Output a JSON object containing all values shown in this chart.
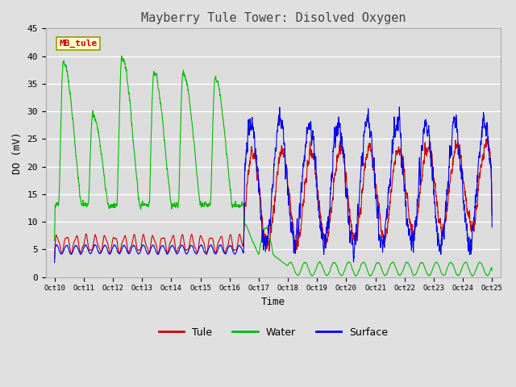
{
  "title": "Mayberry Tule Tower: Disolved Oxygen",
  "xlabel": "Time",
  "ylabel": "DO (mV)",
  "ylim": [
    0,
    45
  ],
  "fig_bg": "#e0e0e0",
  "plot_bg": "#dcdcdc",
  "grid_color": "#ffffff",
  "tule_color": "#cc0000",
  "water_color": "#00bb00",
  "surface_color": "#0000ee",
  "legend_label_tule": "Tule",
  "legend_label_water": "Water",
  "legend_label_surface": "Surface",
  "annotation_text": "MB_tule",
  "annotation_color": "#cc0000",
  "annotation_bg": "#ffffcc",
  "annotation_border": "#999900",
  "ytick_values": [
    0,
    5,
    10,
    15,
    20,
    25,
    30,
    35,
    40,
    45
  ],
  "xtick_positions": [
    0,
    1,
    2,
    3,
    4,
    5,
    6,
    7,
    8,
    9,
    10,
    11,
    12,
    13,
    14,
    15
  ],
  "xtick_labels": [
    "Oct 10",
    "Oct 11",
    "Oct 12",
    "Oct 13",
    "Oct 14",
    "Oct 15",
    "Oct 16",
    "Oct 17",
    "Oct 18",
    "Oct 19",
    "Oct 20",
    "Oct 21",
    "Oct 22",
    "Oct 23",
    "Oct 24",
    "Oct 25"
  ]
}
